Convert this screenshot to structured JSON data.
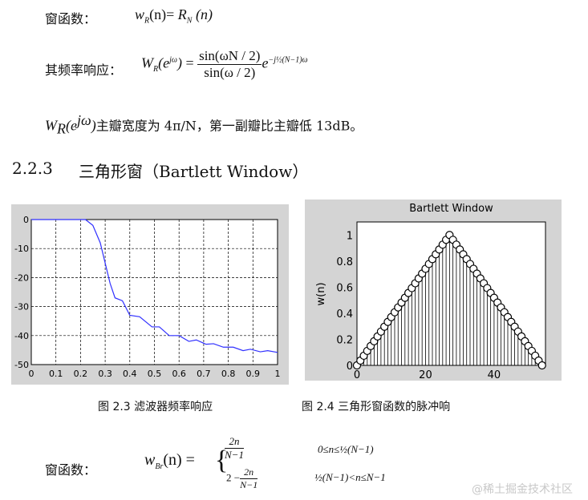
{
  "formula1": {
    "label": "窗函数：",
    "lhs": "w",
    "lhs_sub": "R",
    "arg": "(n)",
    "eq": "=",
    "rhs": "R",
    "rhs_sub": "N",
    "rhs_arg": "(n)"
  },
  "formula2": {
    "label": "其频率响应：",
    "lhs": "W",
    "lhs_sub": "R",
    "arg": "(e",
    "arg_sup": "jω",
    "arg_close": ")",
    "eq": "=",
    "num": "sin(ωN / 2)",
    "den": "sin(ω / 2)",
    "exp_base": "e",
    "exp": "−j½(N−1)ω"
  },
  "line3": {
    "lhs": "W",
    "lhs_sub": "R",
    "arg": "(e",
    "arg_sup": "jω",
    "arg_close": ")",
    "text": "主瓣宽度为 4π/N，第一副瓣比主瓣低 13dB。"
  },
  "section": {
    "number": "2.2.3",
    "title": "三角形窗（Bartlett  Window）"
  },
  "captions": {
    "fig1": "图 2.3    滤波器频率响应",
    "fig2": "图 2.4    三角形窗函数的脉冲响"
  },
  "formula4": {
    "label": "窗函数：",
    "lhs": "w",
    "lhs_sub": "Br",
    "arg": "(n)",
    "eq": "=",
    "case1_num": "2n",
    "case1_den": "N−1",
    "case1_cond": "0≤n≤½(N−1)",
    "case2_pre": "2 −",
    "case2_num": "2n",
    "case2_den": "N−1",
    "case2_cond": "½(N−1)<n≤N−1"
  },
  "watermark": "@稀土掘金技术社区",
  "colors": {
    "plot_bg": "#d4d4d4",
    "curve": "#3030ff",
    "grid": "#000000"
  },
  "chart_data": [
    {
      "type": "line",
      "title": "",
      "xlabel": "",
      "ylabel": "",
      "xlim": [
        0,
        1
      ],
      "ylim": [
        -50,
        0
      ],
      "grid": true,
      "xticks": [
        "0",
        "0.1",
        "0.2",
        "0.3",
        "0.4",
        "0.5",
        "0.6",
        "0.7",
        "0.8",
        "0.9",
        "1"
      ],
      "yticks": [
        "0",
        "-10",
        "-20",
        "-30",
        "-40",
        "-50"
      ],
      "x": [
        0,
        0.22,
        0.25,
        0.28,
        0.3,
        0.32,
        0.34,
        0.37,
        0.4,
        0.44,
        0.49,
        0.52,
        0.56,
        0.6,
        0.64,
        0.67,
        0.71,
        0.74,
        0.78,
        0.82,
        0.86,
        0.89,
        0.93,
        0.96,
        1
      ],
      "y": [
        0,
        0,
        -2,
        -8,
        -15,
        -22,
        -27,
        -28,
        -33,
        -33.5,
        -37,
        -37,
        -40,
        -40,
        -42,
        -41.5,
        -43,
        -42.8,
        -44,
        -44,
        -45.2,
        -44.7,
        -45.6,
        -45.2,
        -45.8
      ]
    },
    {
      "type": "stem",
      "title": "Bartlett  Window",
      "xlabel": "",
      "ylabel": "w(n)",
      "xlim": [
        0,
        55
      ],
      "ylim": [
        0,
        1.1
      ],
      "grid": false,
      "xticks": [
        "0",
        "20",
        "40"
      ],
      "yticks": [
        "0",
        "0.2",
        "0.4",
        "0.6",
        "0.8",
        "1"
      ],
      "n_points": 55,
      "peak_n": 27,
      "description_values": "w(n)=1-|n-27|/27, n=0..54"
    }
  ]
}
